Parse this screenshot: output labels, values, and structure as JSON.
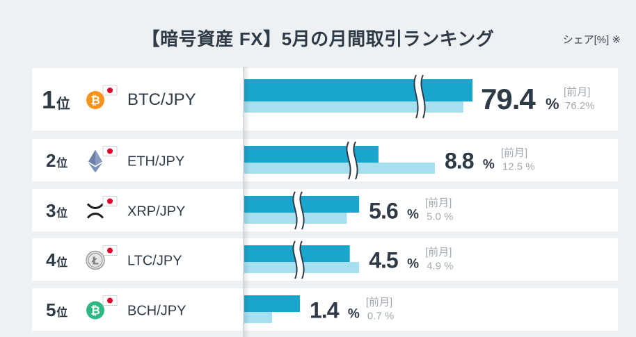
{
  "title": "【暗号資産 FX】5月の月間取引ランキング",
  "unit_note": "シェア[%] ※",
  "rank_suffix": "位",
  "prev_label": "[前月]",
  "percent_sign": "%",
  "colors": {
    "current": "#1aa6cc",
    "previous": "#a6dff0",
    "text": "#2f3a47",
    "muted": "#a2a9b1",
    "card": "#ffffff",
    "background": "#eef1f3"
  },
  "chart_data": {
    "type": "bar",
    "orientation": "horizontal",
    "title": "【暗号資産 FX】5月の月間取引ランキング",
    "axis_broken": true,
    "categories": [
      "BTC/JPY",
      "ETH/JPY",
      "XRP/JPY",
      "LTC/JPY",
      "BCH/JPY"
    ],
    "ranks": [
      "1",
      "2",
      "3",
      "4",
      "5"
    ],
    "icons": [
      "bitcoin-icon",
      "ethereum-icon",
      "xrp-icon",
      "litecoin-icon",
      "bitcoin-cash-icon"
    ],
    "series": [
      {
        "name": "",
        "values": [
          79.4,
          8.8,
          5.6,
          4.5,
          1.4
        ]
      },
      {
        "name": "前月",
        "values": [
          76.2,
          12.5,
          5.0,
          4.9,
          0.7
        ]
      }
    ],
    "value_labels": [
      "79.4",
      "8.8",
      "5.6",
      "4.5",
      "1.4"
    ],
    "prev_value_labels": [
      "76.2%",
      "12.5 %",
      "5.0 %",
      "4.9 %",
      "0.7 %"
    ]
  }
}
